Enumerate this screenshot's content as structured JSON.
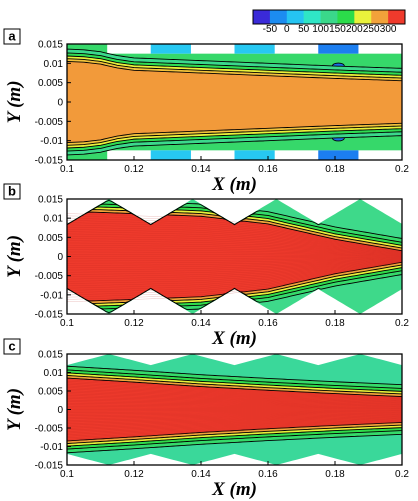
{
  "legend": {
    "colors": [
      "#3a2ad8",
      "#1c8cf0",
      "#25c4f2",
      "#2fe6c6",
      "#3ad88a",
      "#2bdc4a",
      "#e9f23c",
      "#f2a23a",
      "#ef3a2c"
    ],
    "labels": [
      "-50",
      "0",
      "50",
      "100",
      "150",
      "200",
      "250",
      "300"
    ]
  },
  "chart_data": [
    {
      "type": "heatmap",
      "panel": "a",
      "xlabel": "X (m)",
      "ylabel": "Y (m)",
      "xlim": [
        0.1,
        0.2
      ],
      "ylim": [
        -0.015,
        0.015
      ],
      "xticks": [
        "0.1",
        "0.12",
        "0.14",
        "0.16",
        "0.18",
        "0.2"
      ],
      "yticks": [
        "0.015",
        "0.01",
        "0.005",
        "0",
        "-0.005",
        "-0.01",
        "-0.015"
      ],
      "core_halfwidth_x": [
        0.1,
        0.105,
        0.11,
        0.115,
        0.12,
        0.14,
        0.16,
        0.18,
        0.2
      ],
      "core_halfwidth_y": [
        0.0105,
        0.0103,
        0.0098,
        0.0088,
        0.0082,
        0.0075,
        0.0068,
        0.0061,
        0.0055
      ],
      "core_color": "#f29a3a",
      "wall_blocks": [
        {
          "x0": 0.1,
          "x1": 0.112,
          "color": "#36d86a"
        },
        {
          "x0": 0.125,
          "x1": 0.137,
          "color": "#27c8f2"
        },
        {
          "x0": 0.15,
          "x1": 0.162,
          "color": "#27c8f2"
        },
        {
          "x0": 0.175,
          "x1": 0.187,
          "color": "#1c7ef0"
        }
      ]
    },
    {
      "type": "heatmap",
      "panel": "b",
      "xlabel": "X (m)",
      "ylabel": "Y (m)",
      "xlim": [
        0.1,
        0.2
      ],
      "ylim": [
        -0.015,
        0.015
      ],
      "xticks": [
        "0.1",
        "0.12",
        "0.14",
        "0.16",
        "0.18",
        "0.2"
      ],
      "yticks": [
        "0.015",
        "0.01",
        "0.005",
        "0",
        "-0.005",
        "-0.01",
        "-0.015"
      ],
      "wall_period": 0.025,
      "wall_peaks": [
        0.1125,
        0.1375,
        0.1625,
        0.1875
      ],
      "wall_min": 0.0085,
      "wall_max": 0.015,
      "core_halfwidth_x": [
        0.1,
        0.12,
        0.14,
        0.16,
        0.18,
        0.2
      ],
      "core_halfwidth_y": [
        0.0118,
        0.0112,
        0.0105,
        0.0085,
        0.0045,
        0.0015
      ],
      "core_color": "#ee3a2c"
    },
    {
      "type": "heatmap",
      "panel": "c",
      "xlabel": "X (m)",
      "ylabel": "Y (m)",
      "xlim": [
        0.1,
        0.2
      ],
      "ylim": [
        -0.015,
        0.015
      ],
      "xticks": [
        "0.1",
        "0.12",
        "0.14",
        "0.16",
        "0.18",
        "0.2"
      ],
      "yticks": [
        "0.015",
        "0.01",
        "0.005",
        "0",
        "-0.005",
        "-0.01",
        "-0.015"
      ],
      "wall_period": 0.025,
      "wall_peaks": [
        0.1125,
        0.1375,
        0.1625,
        0.1875
      ],
      "wall_min": 0.012,
      "wall_max": 0.015,
      "core_halfwidth_x": [
        0.1,
        0.12,
        0.14,
        0.16,
        0.18,
        0.2
      ],
      "core_halfwidth_y": [
        0.0085,
        0.0074,
        0.0062,
        0.0052,
        0.0043,
        0.0035
      ],
      "core_color": "#ee3a2c"
    }
  ]
}
